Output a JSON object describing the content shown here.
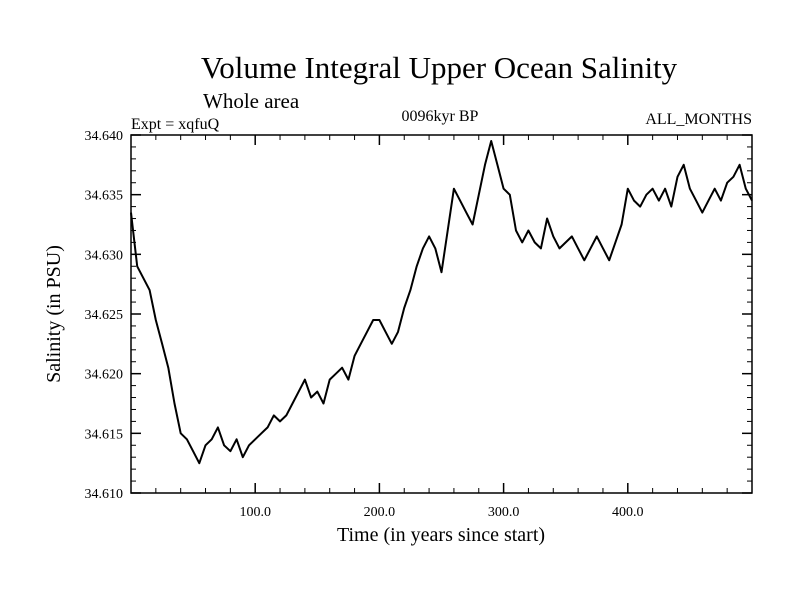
{
  "chart_data": {
    "type": "line",
    "title": "Volume Integral Upper Ocean Salinity",
    "subtitle": "Whole area",
    "experiment_label": "Expt = xqfuQ",
    "period_label": "0096kyr BP",
    "months_label": "ALL_MONTHS",
    "xlabel": "Time (in years since start)",
    "ylabel": "Salinity (in PSU)",
    "xlim": [
      0,
      500
    ],
    "ylim": [
      34.61,
      34.64
    ],
    "x_ticks": [
      100,
      200,
      300,
      400
    ],
    "x_tick_labels": [
      "100.0",
      "200.0",
      "300.0",
      "400.0"
    ],
    "y_ticks": [
      34.61,
      34.615,
      34.62,
      34.625,
      34.63,
      34.635,
      34.64
    ],
    "y_tick_labels": [
      "34.610",
      "34.615",
      "34.620",
      "34.625",
      "34.630",
      "34.635",
      "34.640"
    ],
    "series": [
      {
        "name": "Salinity",
        "x": [
          0,
          5,
          10,
          15,
          20,
          25,
          30,
          35,
          40,
          45,
          50,
          55,
          60,
          65,
          70,
          75,
          80,
          85,
          90,
          95,
          100,
          105,
          110,
          115,
          120,
          125,
          130,
          135,
          140,
          145,
          150,
          155,
          160,
          165,
          170,
          175,
          180,
          185,
          190,
          195,
          200,
          205,
          210,
          215,
          220,
          225,
          230,
          235,
          240,
          245,
          250,
          255,
          260,
          265,
          270,
          275,
          280,
          285,
          290,
          295,
          300,
          305,
          310,
          315,
          320,
          325,
          330,
          335,
          340,
          345,
          350,
          355,
          360,
          365,
          370,
          375,
          380,
          385,
          390,
          395,
          400,
          405,
          410,
          415,
          420,
          425,
          430,
          435,
          440,
          445,
          450,
          455,
          460,
          465,
          470,
          475,
          480,
          485,
          490,
          495,
          500
        ],
        "values": [
          34.6335,
          34.629,
          34.628,
          34.627,
          34.6245,
          34.6225,
          34.6205,
          34.6175,
          34.615,
          34.6145,
          34.6135,
          34.6125,
          34.614,
          34.6145,
          34.6155,
          34.614,
          34.6135,
          34.6145,
          34.613,
          34.614,
          34.6145,
          34.615,
          34.6155,
          34.6165,
          34.616,
          34.6165,
          34.6175,
          34.6185,
          34.6195,
          34.618,
          34.6185,
          34.6175,
          34.6195,
          34.62,
          34.6205,
          34.6195,
          34.6215,
          34.6225,
          34.6235,
          34.6245,
          34.6245,
          34.6235,
          34.6225,
          34.6235,
          34.6255,
          34.627,
          34.629,
          34.6305,
          34.6315,
          34.6305,
          34.6285,
          34.632,
          34.6355,
          34.6345,
          34.6335,
          34.6325,
          34.635,
          34.6375,
          34.6395,
          34.6375,
          34.6355,
          34.635,
          34.632,
          34.631,
          34.632,
          34.631,
          34.6305,
          34.633,
          34.6315,
          34.6305,
          34.631,
          34.6315,
          34.6305,
          34.6295,
          34.6305,
          34.6315,
          34.6305,
          34.6295,
          34.631,
          34.6325,
          34.6355,
          34.6345,
          34.634,
          34.635,
          34.6355,
          34.6345,
          34.6355,
          34.634,
          34.6365,
          34.6375,
          34.6355,
          34.6345,
          34.6335,
          34.6345,
          34.6355,
          34.6345,
          34.636,
          34.6365,
          34.6375,
          34.6355,
          34.6345
        ]
      }
    ]
  }
}
